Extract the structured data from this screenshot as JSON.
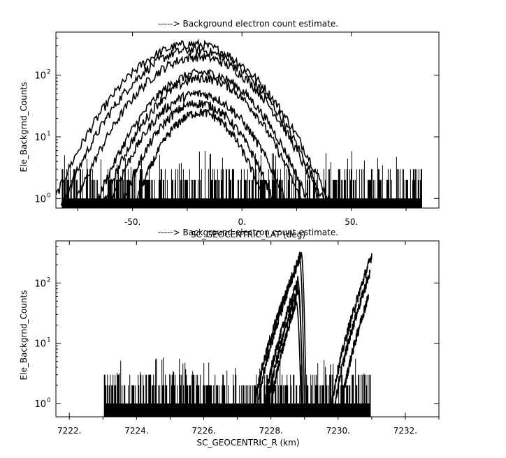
{
  "chart_data": [
    {
      "type": "line",
      "title": "-----> Background electron count estimate.",
      "xlabel": "SC_GEOCENTRIC_LAT (deg)",
      "ylabel": "Ele_Backgrnd_Counts",
      "xlim": [
        -85,
        90
      ],
      "ylim": [
        0.7,
        500
      ],
      "y_scale": "log",
      "grid": false,
      "x_ticks": [
        -50,
        0,
        50
      ],
      "x_tick_labels": [
        "-50.",
        "0.",
        "50."
      ],
      "y_ticks": [
        1,
        10,
        100
      ],
      "y_tick_labels": [
        "10",
        "10",
        "10"
      ],
      "y_tick_exponents": [
        "0",
        "1",
        "2"
      ],
      "noise_floor": {
        "x_range": [
          -82,
          82
        ],
        "levels": [
          1,
          2,
          3
        ],
        "max": 6
      },
      "series": [
        {
          "peak_x": -23,
          "peak_y": 320,
          "width": 26
        },
        {
          "peak_x": -22,
          "peak_y": 260,
          "width": 25
        },
        {
          "peak_x": -20,
          "peak_y": 200,
          "width": 24
        },
        {
          "peak_x": -18,
          "peak_y": 110,
          "width": 22
        },
        {
          "peak_x": -18,
          "peak_y": 90,
          "width": 21
        },
        {
          "peak_x": -20,
          "peak_y": 50,
          "width": 20
        },
        {
          "peak_x": -20,
          "peak_y": 35,
          "width": 18
        },
        {
          "peak_x": -19,
          "peak_y": 25,
          "width": 16
        }
      ]
    },
    {
      "type": "line",
      "title": "-----> Background electron count estimate.",
      "xlabel": "SC_GEOCENTRIC_R (km)",
      "ylabel": "Ele_Backgrnd_Counts",
      "xlim": [
        7221.6,
        7233.0
      ],
      "ylim": [
        0.6,
        500
      ],
      "y_scale": "log",
      "grid": false,
      "x_ticks": [
        7222,
        7224,
        7226,
        7228,
        7230,
        7232
      ],
      "x_tick_labels": [
        "7222.",
        "7224.",
        "7226.",
        "7228.",
        "7230.",
        "7232."
      ],
      "y_ticks": [
        1,
        10,
        100
      ],
      "y_tick_labels": [
        "10",
        "10",
        "10"
      ],
      "y_tick_exponents": [
        "0",
        "1",
        "2"
      ],
      "noise_floor": {
        "x_range": [
          7223.05,
          7230.95
        ],
        "levels": [
          1,
          2,
          3
        ],
        "max": 6
      },
      "series": [
        {
          "x_start": 7227.5,
          "x_peak": 7228.9,
          "x_end": 7229.05,
          "peak_y": 320
        },
        {
          "x_start": 7227.6,
          "x_peak": 7228.85,
          "x_end": 7229.0,
          "peak_y": 260
        },
        {
          "x_start": 7227.8,
          "x_peak": 7228.8,
          "x_end": 7228.95,
          "peak_y": 110
        },
        {
          "x_start": 7227.9,
          "x_peak": 7228.8,
          "x_end": 7228.95,
          "peak_y": 80
        },
        {
          "x_start": 7228.0,
          "x_peak": 7228.75,
          "x_end": 7228.9,
          "peak_y": 50
        },
        {
          "x_start": 7229.8,
          "x_peak": 7231.0,
          "x_end": 7231.0,
          "peak_y": 290
        },
        {
          "x_start": 7229.9,
          "x_peak": 7230.95,
          "x_end": 7230.95,
          "peak_y": 150
        },
        {
          "x_start": 7230.1,
          "x_peak": 7230.9,
          "x_end": 7230.9,
          "peak_y": 60
        }
      ]
    }
  ]
}
